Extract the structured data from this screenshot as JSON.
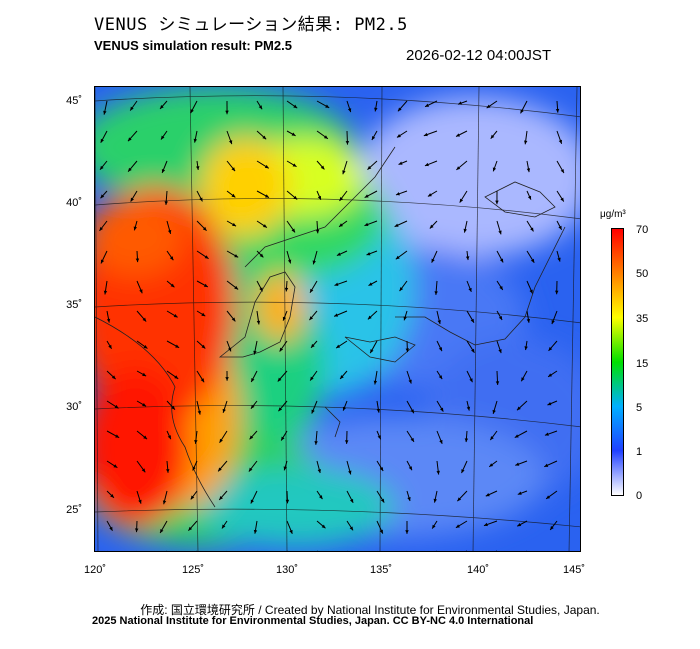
{
  "header": {
    "title_jp": "VENUS シミュレーション結果: PM2.5",
    "title_en": "VENUS simulation result: PM2.5",
    "timestamp": "2026-02-12 04:00JST"
  },
  "axes": {
    "lat_labels": [
      "45˚",
      "40˚",
      "35˚",
      "30˚",
      "25˚"
    ],
    "lon_labels": [
      "120˚",
      "125˚",
      "130˚",
      "135˚",
      "140˚",
      "145˚"
    ]
  },
  "colorbar": {
    "unit": "μg/m³",
    "labels": [
      "70",
      "50",
      "35",
      "15",
      "5",
      "1",
      "0"
    ],
    "colors": [
      "#ff0000",
      "#ff8000",
      "#ffff00",
      "#00e000",
      "#00b0ff",
      "#2040ff",
      "#ffffff"
    ]
  },
  "footer": {
    "credit_jp_en": "作成: 国立環境研究所 / Created by National Institute for Environmental Studies, Japan.",
    "license": "2025 National Institute for Environmental Studies, Japan. CC BY-NC 4.0 International"
  }
}
